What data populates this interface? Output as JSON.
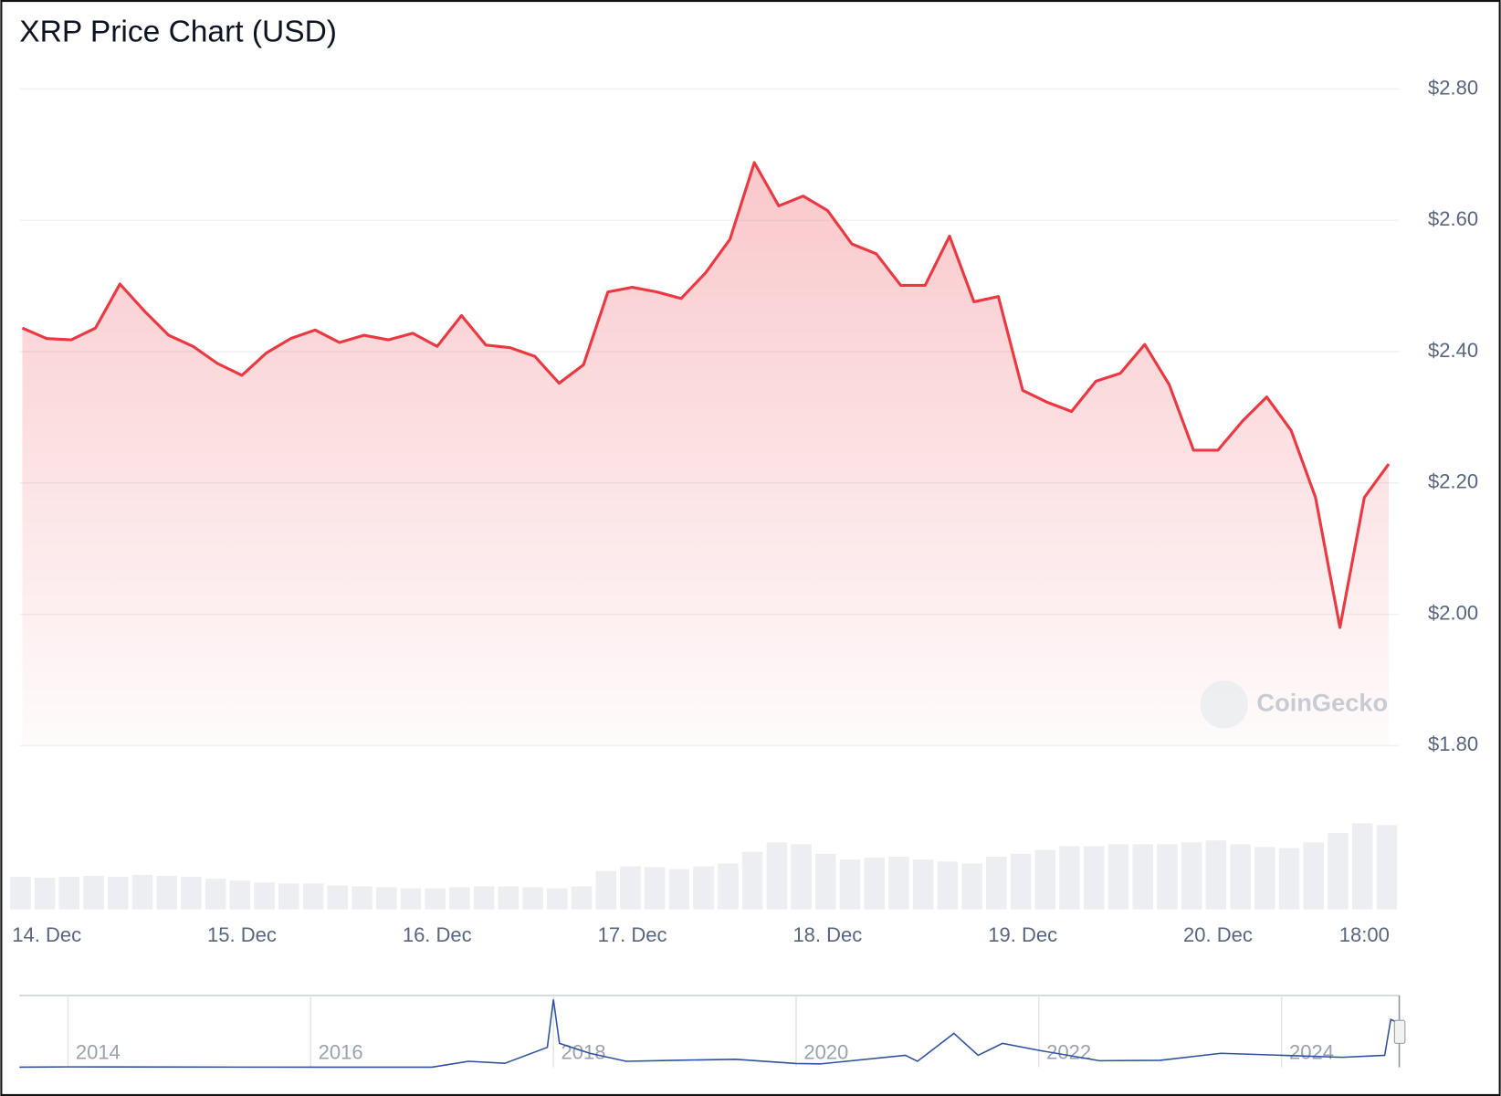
{
  "chart_data": [
    {
      "type": "line",
      "title": "XRP Price Chart (USD)",
      "watermark": "CoinGecko",
      "categories": [
        null,
        "14. Dec",
        null,
        null,
        null,
        null,
        null,
        null,
        null,
        "15. Dec",
        null,
        null,
        null,
        null,
        null,
        null,
        null,
        "16. Dec",
        null,
        null,
        null,
        null,
        null,
        null,
        null,
        "17. Dec",
        null,
        null,
        null,
        null,
        null,
        null,
        null,
        "18. Dec",
        null,
        null,
        null,
        null,
        null,
        null,
        null,
        "19. Dec",
        null,
        null,
        null,
        null,
        null,
        null,
        null,
        "20. Dec",
        null,
        null,
        null,
        null,
        null,
        "18:00",
        null
      ],
      "series": [
        {
          "color": "#ea3943",
          "values": [
            2.436,
            2.42,
            2.418,
            2.436,
            2.503,
            2.462,
            2.425,
            2.408,
            2.382,
            2.364,
            2.398,
            2.42,
            2.433,
            2.414,
            2.425,
            2.418,
            2.428,
            2.408,
            2.455,
            2.41,
            2.406,
            2.393,
            2.352,
            2.38,
            2.491,
            2.498,
            2.491,
            2.481,
            2.52,
            2.571,
            2.688,
            2.622,
            2.637,
            2.615,
            2.564,
            2.549,
            2.501,
            2.501,
            2.576,
            2.476,
            2.484,
            2.341,
            2.323,
            2.309,
            2.355,
            2.367,
            2.411,
            2.35,
            2.25,
            2.25,
            2.294,
            2.331,
            2.28,
            2.178,
            1.98,
            2.178,
            2.229
          ]
        },
        {
          "color": "#eceef1",
          "axis": "y2",
          "values": [
            34,
            33,
            34,
            35,
            34,
            36,
            35,
            34,
            32,
            30,
            28,
            27,
            27,
            25,
            24,
            23,
            22,
            22,
            23,
            24,
            24,
            23,
            22,
            24,
            40,
            45,
            44,
            42,
            45,
            48,
            60,
            70,
            68,
            58,
            52,
            54,
            55,
            52,
            50,
            48,
            55,
            58,
            62,
            66,
            66,
            68,
            68,
            68,
            70,
            72,
            68,
            65,
            64,
            70,
            80,
            90,
            88
          ]
        }
      ],
      "ylim": [
        1.8,
        2.8
      ],
      "yticks": [
        {
          "value": 1.8,
          "label": "$1.80"
        },
        {
          "value": 2.0,
          "label": "$2.00"
        },
        {
          "value": 2.2,
          "label": "$2.20"
        },
        {
          "value": 2.4,
          "label": "$2.40"
        },
        {
          "value": 2.6,
          "label": "$2.60"
        },
        {
          "value": 2.8,
          "label": "$2.80"
        }
      ],
      "y2lim": [
        0,
        100
      ],
      "grid": true
    },
    {
      "type": "line",
      "color": "#2f52a0",
      "x": [
        2013.6,
        2014,
        2015,
        2016,
        2017,
        2017.3,
        2017.6,
        2017.95,
        2018.0,
        2018.05,
        2018.3,
        2018.6,
        2019,
        2019.5,
        2020,
        2020.2,
        2020.9,
        2021,
        2021.3,
        2021.5,
        2021.7,
        2022,
        2022.5,
        2023,
        2023.5,
        2024,
        2024.5,
        2024.85,
        2024.9,
        2024.97
      ],
      "values": [
        0.005,
        0.02,
        0.01,
        0.006,
        0.007,
        0.3,
        0.2,
        1.0,
        3.4,
        1.2,
        0.7,
        0.3,
        0.35,
        0.4,
        0.19,
        0.17,
        0.6,
        0.3,
        1.7,
        0.6,
        1.2,
        0.85,
        0.33,
        0.35,
        0.7,
        0.6,
        0.5,
        0.6,
        2.4,
        2.2
      ],
      "xlim": [
        2013.6,
        2024.97
      ],
      "xticks": [
        2014,
        2016,
        2018,
        2020,
        2022,
        2024
      ],
      "ylim": [
        0,
        3.6
      ]
    }
  ]
}
